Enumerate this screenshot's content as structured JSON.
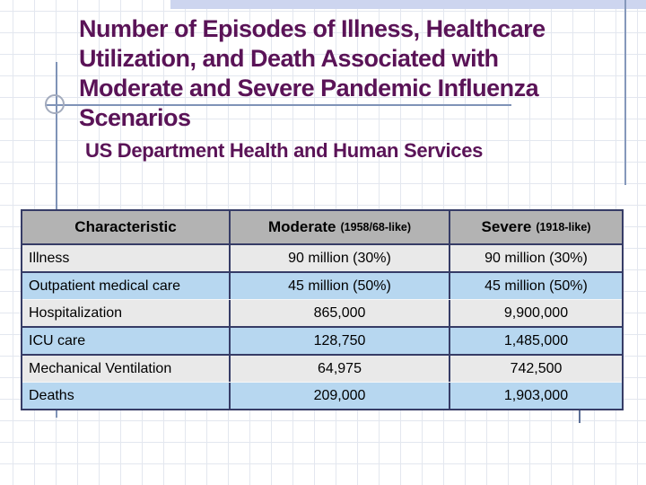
{
  "slide": {
    "title_lines": [
      "Number of Episodes of Illness, Healthcare",
      "Utilization, and Death Associated with",
      "Moderate and Severe Pandemic Influenza",
      "Scenarios"
    ],
    "subtitle": "US Department Health and Human Services"
  },
  "table": {
    "columns": [
      {
        "label": "Characteristic",
        "sublabel": ""
      },
      {
        "label": "Moderate",
        "sublabel": "(1958/68-like)"
      },
      {
        "label": "Severe",
        "sublabel": "(1918-like)"
      }
    ],
    "rows": [
      {
        "characteristic": "Illness",
        "moderate": "90 million (30%)",
        "severe": "90 million (30%)"
      },
      {
        "characteristic": "Outpatient medical care",
        "moderate": "45 million (50%)",
        "severe": "45 million (50%)"
      },
      {
        "characteristic": "Hospitalization",
        "moderate": "865,000",
        "severe": "9,900,000"
      },
      {
        "characteristic": "ICU care",
        "moderate": "128,750",
        "severe": "1,485,000"
      },
      {
        "characteristic": "Mechanical Ventilation",
        "moderate": "64,975",
        "severe": "742,500"
      },
      {
        "characteristic": "Deaths",
        "moderate": "209,000",
        "severe": "1,903,000"
      }
    ]
  },
  "colors": {
    "title_text": "#5a1357",
    "table_border": "#363c66",
    "header_bg": "#b3b3b3",
    "row_gray": "#e9e9e9",
    "row_blue": "#b7d7f0",
    "accent_bar": "#cdd5ef",
    "template_line": "#7f93b7"
  }
}
